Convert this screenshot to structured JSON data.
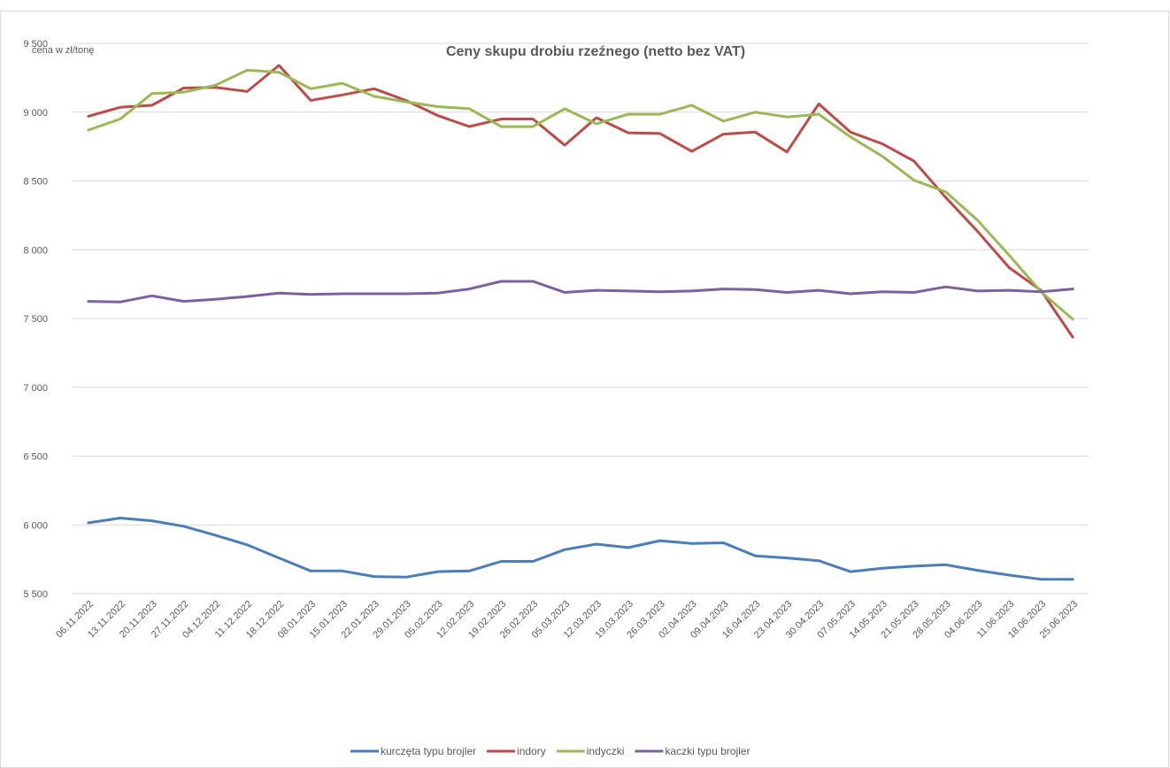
{
  "chart_data": {
    "type": "line",
    "title": "Ceny skupu drobiu rzeźnego (netto bez VAT)",
    "ylabel": "cena w zł/tonę",
    "xlabel": "",
    "ylim": [
      5500,
      9500
    ],
    "yticks": [
      5500,
      6000,
      6500,
      7000,
      7500,
      8000,
      8500,
      9000,
      9500
    ],
    "ytick_labels": [
      "5 500",
      "6 000",
      "6 500",
      "7 000",
      "7 500",
      "8 000",
      "8 500",
      "9 000",
      "9 500"
    ],
    "grid": true,
    "legend": "bottom",
    "categories": [
      "06.11.2022",
      "13.11.2022",
      "20.11.2023",
      "27.11.2022",
      "04.12.2022",
      "11.12.2022",
      "18.12.2022",
      "08.01.2023",
      "15.01.2023",
      "22.01.2023",
      "29.01.2023",
      "05.02.2023",
      "12.02.2023",
      "19.02.2023",
      "26.02.2023",
      "05.03.2023",
      "12.03.2023",
      "19.03.2023",
      "26.03.2023",
      "02.04.2023",
      "09.04.2023",
      "16.04.2023",
      "23.04.2023",
      "30.04.2023",
      "07.05.2023",
      "14.05.2023",
      "21.05.2023",
      "28.05.2023",
      "04.06.2023",
      "11.06.2023",
      "18.06.2023",
      "25.06.2023"
    ],
    "series": [
      {
        "name": "kurczęta typu brojler",
        "color": "#4a7ebb",
        "values": [
          6015,
          6050,
          6030,
          5990,
          5925,
          5855,
          5760,
          5665,
          5665,
          5625,
          5620,
          5660,
          5665,
          5735,
          5735,
          5820,
          5860,
          5835,
          5885,
          5865,
          5870,
          5775,
          5760,
          5740,
          5660,
          5685,
          5700,
          5710,
          5670,
          5635,
          5605,
          5605
        ]
      },
      {
        "name": "indory",
        "color": "#be4b48",
        "values": [
          8970,
          9035,
          9050,
          9175,
          9180,
          9150,
          9340,
          9085,
          9125,
          9170,
          9085,
          8975,
          8895,
          8950,
          8950,
          8760,
          8960,
          8850,
          8845,
          8715,
          8840,
          8855,
          8710,
          9060,
          8855,
          8770,
          8645,
          8380,
          8135,
          7870,
          7705,
          7365
        ]
      },
      {
        "name": "indyczki",
        "color": "#98b954",
        "values": [
          8870,
          8950,
          9135,
          9145,
          9195,
          9305,
          9290,
          9170,
          9210,
          9115,
          9075,
          9040,
          9025,
          8895,
          8895,
          9025,
          8915,
          8985,
          8985,
          9050,
          8935,
          9000,
          8965,
          8985,
          8820,
          8680,
          8505,
          8420,
          8215,
          7960,
          7695,
          7495
        ]
      },
      {
        "name": "kaczki typu brojler",
        "color": "#7d60a0",
        "values": [
          7625,
          7620,
          7665,
          7625,
          7640,
          7660,
          7685,
          7675,
          7680,
          7680,
          7680,
          7685,
          7715,
          7770,
          7770,
          7690,
          7705,
          7700,
          7695,
          7700,
          7715,
          7710,
          7690,
          7705,
          7680,
          7695,
          7690,
          7730,
          7700,
          7705,
          7695,
          7715
        ]
      }
    ]
  }
}
